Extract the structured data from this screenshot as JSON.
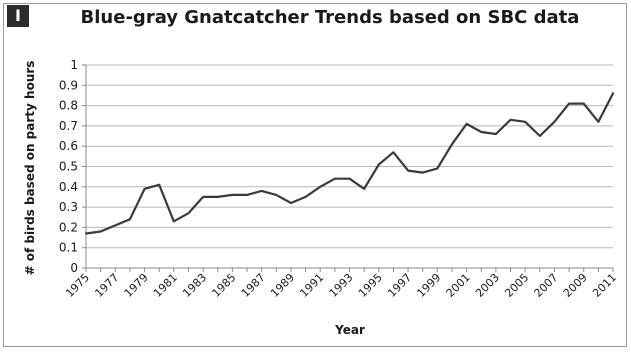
{
  "panel_label": "I",
  "chart_data": {
    "type": "line",
    "title": "Blue-gray Gnatcatcher Trends based on SBC data",
    "xlabel": "Year",
    "ylabel": "# of birds based on party hours",
    "ylim": [
      0,
      1
    ],
    "yticks": [
      "0",
      "0.1",
      "0.2",
      "0.3",
      "0.4",
      "0.5",
      "0.6",
      "0.7",
      "0.8",
      "0.9",
      "1"
    ],
    "xticks": [
      "1975",
      "1977",
      "1979",
      "1981",
      "1983",
      "1985",
      "1987",
      "1989",
      "1991",
      "1993",
      "1995",
      "1997",
      "1999",
      "2001",
      "2003",
      "2005",
      "2007",
      "2009",
      "2011"
    ],
    "grid": true,
    "legend": "none",
    "line_color": "#3a3a3a",
    "x": [
      1975,
      1976,
      1977,
      1978,
      1979,
      1980,
      1981,
      1982,
      1983,
      1984,
      1985,
      1986,
      1987,
      1988,
      1989,
      1990,
      1991,
      1992,
      1993,
      1994,
      1995,
      1996,
      1997,
      1998,
      1999,
      2000,
      2001,
      2002,
      2003,
      2004,
      2005,
      2006,
      2007,
      2008,
      2009,
      2010,
      2011
    ],
    "values": [
      0.17,
      0.18,
      0.21,
      0.24,
      0.39,
      0.41,
      0.23,
      0.27,
      0.35,
      0.35,
      0.36,
      0.36,
      0.38,
      0.36,
      0.32,
      0.35,
      0.4,
      0.44,
      0.44,
      0.39,
      0.51,
      0.57,
      0.48,
      0.47,
      0.49,
      0.61,
      0.71,
      0.67,
      0.66,
      0.73,
      0.72,
      0.65,
      0.72,
      0.81,
      0.81,
      0.72,
      0.86
    ]
  }
}
